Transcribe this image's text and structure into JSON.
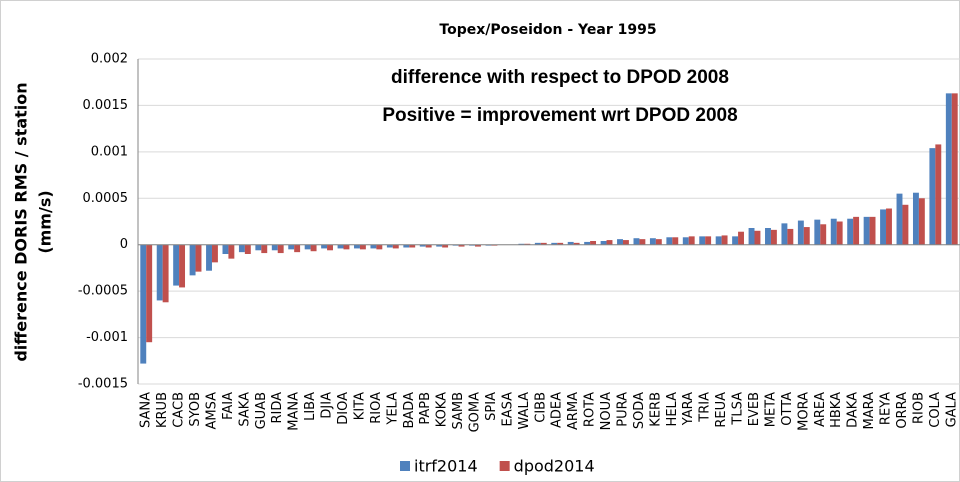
{
  "chart_data": {
    "type": "bar",
    "title": "Topex/Poseidon - Year 1995",
    "y_label": [
      "difference DORIS RMS / station",
      "(mm/s)"
    ],
    "annotations": [
      "difference with respect to DPOD 2008",
      "Positive = improvement wrt DPOD 2008"
    ],
    "categories": [
      "SANA",
      "KRUB",
      "CACB",
      "SYOB",
      "AMSA",
      "FAIA",
      "SAKA",
      "GUAB",
      "RIDA",
      "MANA",
      "LIBA",
      "DJIA",
      "DIOA",
      "KITA",
      "RIOA",
      "YELA",
      "BADA",
      "PAPB",
      "KOKA",
      "SAMB",
      "GOMA",
      "SPIA",
      "EASA",
      "WALA",
      "CIBB",
      "ADEA",
      "ARMA",
      "ROTA",
      "NOUA",
      "PURA",
      "SODA",
      "KERB",
      "HELA",
      "YARA",
      "TRIA",
      "REUA",
      "TLSA",
      "EVEB",
      "META",
      "OTTA",
      "MORA",
      "AREA",
      "HBKA",
      "DAKA",
      "MARA",
      "REYA",
      "ORRA",
      "RIOB",
      "COLA",
      "GALA"
    ],
    "series": [
      {
        "name": "itrf2014",
        "color": "#4f81bd",
        "values": [
          -0.00128,
          -0.0006,
          -0.00044,
          -0.00033,
          -0.00028,
          -0.0001,
          -8e-05,
          -6e-05,
          -6e-05,
          -5e-05,
          -5e-05,
          -4e-05,
          -4e-05,
          -4e-05,
          -4e-05,
          -3e-05,
          -3e-05,
          -2e-05,
          -2e-05,
          -1e-05,
          -1e-05,
          -1e-05,
          0,
          1e-05,
          2e-05,
          2e-05,
          3e-05,
          3e-05,
          4e-05,
          6e-05,
          7e-05,
          7e-05,
          8e-05,
          8e-05,
          9e-05,
          9e-05,
          9e-05,
          0.00018,
          0.00018,
          0.00023,
          0.00026,
          0.00027,
          0.00028,
          0.00028,
          0.0003,
          0.00038,
          0.00055,
          0.00056,
          0.00104,
          0.00163
        ]
      },
      {
        "name": "dpod2014",
        "color": "#c0504d",
        "values": [
          -0.00105,
          -0.00062,
          -0.00046,
          -0.00029,
          -0.00019,
          -0.00015,
          -0.0001,
          -9e-05,
          -9e-05,
          -8e-05,
          -7e-05,
          -6e-05,
          -5e-05,
          -5e-05,
          -5e-05,
          -4e-05,
          -3e-05,
          -3e-05,
          -3e-05,
          -2e-05,
          -2e-05,
          -1e-05,
          0,
          1e-05,
          2e-05,
          2e-05,
          2e-05,
          4e-05,
          5e-05,
          5e-05,
          6e-05,
          6e-05,
          8e-05,
          9e-05,
          9e-05,
          0.0001,
          0.00014,
          0.00015,
          0.00016,
          0.00017,
          0.00019,
          0.00022,
          0.00025,
          0.0003,
          0.0003,
          0.00039,
          0.00043,
          0.0005,
          0.00108,
          0.00163
        ]
      }
    ],
    "ylim": [
      -0.0015,
      0.002
    ],
    "yticks": [
      -0.0015,
      -0.001,
      -0.0005,
      0,
      0.0005,
      0.001,
      0.0015,
      0.002
    ],
    "grid": true
  }
}
